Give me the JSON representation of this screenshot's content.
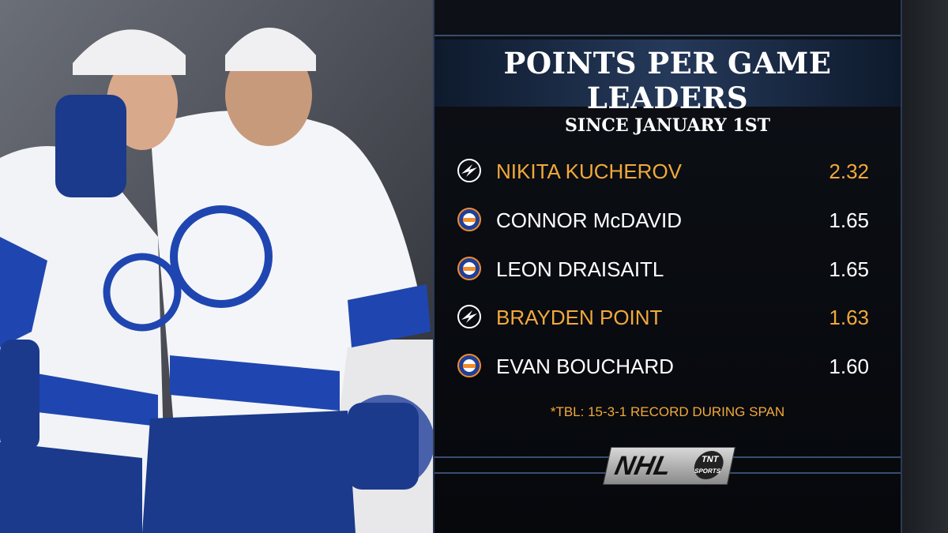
{
  "graphic": {
    "title": "POINTS PER GAME LEADERS",
    "subtitle": "SINCE JANUARY 1ST",
    "rows": [
      {
        "name": "NIKITA KUCHEROV",
        "value": "2.32",
        "color": "#f2a93b"
      },
      {
        "name": "CONNOR McDAVID",
        "value": "1.65",
        "color": "#ffffff"
      },
      {
        "name": "LEON DRAISAITL",
        "value": "1.65",
        "color": "#ffffff"
      },
      {
        "name": "BRAYDEN POINT",
        "value": "1.63",
        "color": "#f2a93b"
      },
      {
        "name": "EVAN BOUCHARD",
        "value": "1.60",
        "color": "#ffffff"
      }
    ],
    "footnote": "*TBL: 15-3-1 RECORD DURING SPAN",
    "logo": {
      "main": "NHL",
      "network": "TNT",
      "sub": "SPORTS"
    }
  }
}
